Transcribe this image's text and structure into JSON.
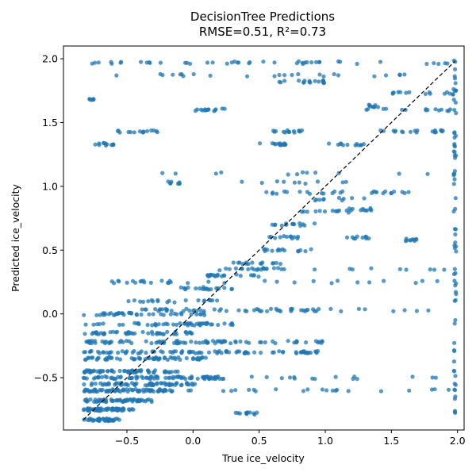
{
  "chart_data": {
    "type": "scatter",
    "title": "DecisionTree Predictions",
    "subtitle": "RMSE=0.51, R²=0.73",
    "xlabel": "True ice_velocity",
    "ylabel": "Predicted ice_velocity",
    "xlim": [
      -0.98,
      2.05
    ],
    "ylim": [
      -0.91,
      2.1
    ],
    "xticks": [
      -0.5,
      0.0,
      0.5,
      1.0,
      1.5,
      2.0
    ],
    "yticks": [
      -0.5,
      0.0,
      0.5,
      1.0,
      1.5,
      2.0
    ],
    "xtick_labels": [
      "−0.5",
      "0.0",
      "0.5",
      "1.0",
      "1.5",
      "2.0"
    ],
    "ytick_labels": [
      "−0.5",
      "0.0",
      "0.5",
      "1.0",
      "1.5",
      "2.0"
    ],
    "grid": false,
    "point_color": "#1f77b4",
    "reference_line": {
      "style": "dashed",
      "color": "#000000",
      "from": [
        -0.83,
        -0.83
      ],
      "to": [
        1.98,
        1.98
      ]
    },
    "series": [
      {
        "clusters": [
          {
            "x": [
              -0.83,
              -0.55
            ],
            "y": -0.83,
            "n": 40
          },
          {
            "x": [
              -0.83,
              -0.45
            ],
            "y": -0.75,
            "n": 60
          },
          {
            "x": [
              -0.83,
              -0.3
            ],
            "y": -0.68,
            "n": 60
          },
          {
            "x": [
              -0.83,
              -0.2
            ],
            "y": -0.6,
            "n": 70
          },
          {
            "x": [
              -0.83,
              0.05
            ],
            "y": -0.55,
            "n": 60
          },
          {
            "x": [
              -0.83,
              0.2
            ],
            "y": -0.5,
            "n": 70
          },
          {
            "x": [
              -0.83,
              -0.1
            ],
            "y": -0.45,
            "n": 60
          },
          {
            "x": [
              -0.83,
              0.1
            ],
            "y": -0.35,
            "n": 60
          },
          {
            "x": [
              -0.83,
              1.0
            ],
            "y": -0.3,
            "n": 90
          },
          {
            "x": [
              -0.83,
              0.3
            ],
            "y": -0.22,
            "n": 60
          },
          {
            "x": [
              -0.83,
              0.0
            ],
            "y": -0.15,
            "n": 50
          },
          {
            "x": [
              -0.83,
              0.3
            ],
            "y": -0.08,
            "n": 50
          },
          {
            "x": [
              -0.83,
              0.1
            ],
            "y": 0.0,
            "n": 40
          },
          {
            "x": [
              -0.45,
              1.0
            ],
            "y": 0.03,
            "n": 50
          },
          {
            "x": [
              0.7,
              1.95
            ],
            "y": 0.03,
            "n": 10
          },
          {
            "x": [
              0.2,
              1.0
            ],
            "y": -0.22,
            "n": 25
          },
          {
            "x": [
              -0.8,
              1.98
            ],
            "y": -0.5,
            "n": 25
          },
          {
            "x": [
              -0.2,
              1.98
            ],
            "y": -0.6,
            "n": 25
          },
          {
            "x": [
              0.3,
              0.5
            ],
            "y": -0.78,
            "n": 12
          },
          {
            "x": [
              -0.5,
              0.2
            ],
            "y": 0.1,
            "n": 20
          },
          {
            "x": [
              -0.1,
              0.3
            ],
            "y": 0.2,
            "n": 20
          },
          {
            "x": [
              0.1,
              0.5
            ],
            "y": 0.3,
            "n": 20
          },
          {
            "x": [
              0.2,
              0.6
            ],
            "y": 0.35,
            "n": 15
          },
          {
            "x": [
              0.3,
              0.7
            ],
            "y": 0.4,
            "n": 15
          },
          {
            "x": [
              0.5,
              0.9
            ],
            "y": 0.5,
            "n": 15
          },
          {
            "x": [
              0.55,
              0.8
            ],
            "y": 0.6,
            "n": 12
          },
          {
            "x": [
              0.6,
              1.0
            ],
            "y": 0.7,
            "n": 15
          },
          {
            "x": [
              0.8,
              1.2
            ],
            "y": 0.8,
            "n": 12
          },
          {
            "x": [
              0.9,
              1.3
            ],
            "y": 0.9,
            "n": 10
          },
          {
            "x": [
              -0.6,
              -0.1
            ],
            "y": 0.25,
            "n": 12
          },
          {
            "x": [
              -0.7,
              1.98
            ],
            "y": 0.25,
            "n": 20
          },
          {
            "x": [
              0.3,
              1.98
            ],
            "y": 0.35,
            "n": 15
          },
          {
            "x": [
              1.15,
              1.35
            ],
            "y": 0.6,
            "n": 10
          },
          {
            "x": [
              1.15,
              1.35
            ],
            "y": 0.82,
            "n": 12
          },
          {
            "x": [
              1.6,
              1.7
            ],
            "y": 0.58,
            "n": 10
          },
          {
            "x": [
              0.3,
              1.2
            ],
            "y": 1.03,
            "n": 10
          },
          {
            "x": [
              -0.2,
              -0.1
            ],
            "y": 1.03,
            "n": 8
          },
          {
            "x": [
              0.55,
              1.15
            ],
            "y": 0.95,
            "n": 15
          },
          {
            "x": [
              1.3,
              1.7
            ],
            "y": 0.95,
            "n": 12
          },
          {
            "x": [
              -0.4,
              1.98
            ],
            "y": 1.1,
            "n": 12
          },
          {
            "x": [
              -0.75,
              -0.6
            ],
            "y": 1.33,
            "n": 12
          },
          {
            "x": [
              0.5,
              0.7
            ],
            "y": 1.33,
            "n": 15
          },
          {
            "x": [
              1.0,
              1.3
            ],
            "y": 1.33,
            "n": 12
          },
          {
            "x": [
              -0.6,
              -0.25
            ],
            "y": 1.43,
            "n": 15
          },
          {
            "x": [
              0.6,
              0.85
            ],
            "y": 1.43,
            "n": 15
          },
          {
            "x": [
              1.4,
              1.9
            ],
            "y": 1.43,
            "n": 20
          },
          {
            "x": [
              0.0,
              0.25
            ],
            "y": 1.6,
            "n": 15
          },
          {
            "x": [
              1.3,
              1.98
            ],
            "y": 1.6,
            "n": 15
          },
          {
            "x": [
              1.3,
              1.4
            ],
            "y": 1.63,
            "n": 8
          },
          {
            "x": [
              -0.8,
              -0.7
            ],
            "y": 1.68,
            "n": 6
          },
          {
            "x": [
              1.5,
              1.98
            ],
            "y": 1.73,
            "n": 15
          },
          {
            "x": [
              0.65,
              1.0
            ],
            "y": 1.82,
            "n": 18
          },
          {
            "x": [
              -0.8,
              1.98
            ],
            "y": 1.87,
            "n": 25
          },
          {
            "x": [
              -0.8,
              1.98
            ],
            "y": 1.97,
            "n": 45
          },
          {
            "x": [
              1.97,
              1.99
            ],
            "y": "spread",
            "n": 70
          }
        ]
      }
    ]
  }
}
